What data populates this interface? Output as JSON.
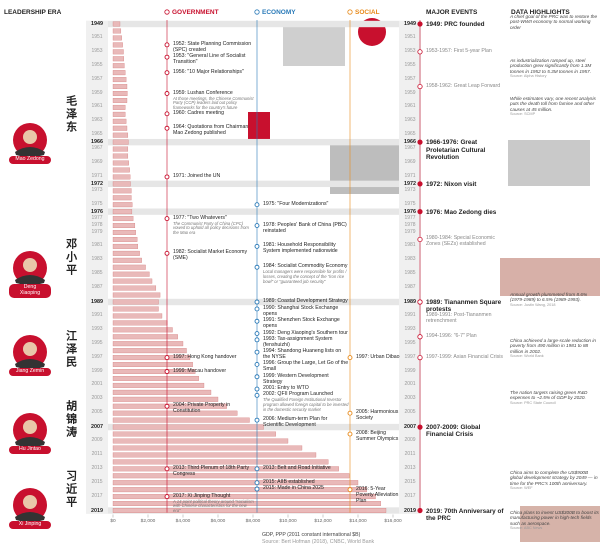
{
  "header": {
    "leadership_era": "LEADERSHIP ERA",
    "government": "GOVERNMENT",
    "economy": "ECONOMY",
    "social": "SOCIAL",
    "major_events": "MAJOR EVENTS",
    "data_highlights": "DATA HIGHLIGHTS"
  },
  "leaders": [
    {
      "chinese": "毛泽东",
      "name": "Mao Zedong"
    },
    {
      "chinese": "邓小平",
      "name": "Deng Xiaoping"
    },
    {
      "chinese": "江泽民",
      "name": "Jiang Zemin"
    },
    {
      "chinese": "胡锦涛",
      "name": "Hu Jintao"
    },
    {
      "chinese": "习近平",
      "name": "Xi Jinping"
    }
  ],
  "government": [
    {
      "text": "1952: State Planning Commission (SPC) created"
    },
    {
      "text": "1953: \"General Line of Socialist Transition\""
    },
    {
      "text": "1956: \"10 Major Relationships\""
    },
    {
      "text": "1959: Lushan Conference",
      "note": "At those meetings, the Chinese Communist Party (CCP) leaders laid out policy frameworks for the country's future"
    },
    {
      "text": "1960: Cadres meeting"
    },
    {
      "text": "1964: Quotations from Chairman Mao Zedong published"
    },
    {
      "text": "1971: Joined the UN"
    },
    {
      "text": "1977: \"Two Whatevers\"",
      "note": "The Communist Party of China (CPC) vowed to uphold all policy decisions from the Mao era"
    },
    {
      "text": "1982: Socialist Market Economy (SME)"
    },
    {
      "text": "1997: Hong Kong handover"
    },
    {
      "text": "1999: Macau handover"
    },
    {
      "text": "2004: Private Property in Constitution"
    },
    {
      "text": "2013: Third Plenum of 18th Party Congress"
    },
    {
      "text": "2017: Xi Jinping Thought",
      "note": "A 14 point political theory around \"socialism with Chinese characteristics for the new era\""
    }
  ],
  "economy": [
    {
      "text": "1975: \"Four Modernizations\""
    },
    {
      "text": "1978: Peoples' Bank of China (PBC) reinstated"
    },
    {
      "text": "1981: Household Responsibility System implemented nationwide"
    },
    {
      "text": "1984: Socialist Commodity Economy",
      "note": "Local managers were responsible for profits / losses, creating the concept of the \"iron rice bowl\" or \"guaranteed job security\""
    },
    {
      "text": "1989: Coastal Development Strategy"
    },
    {
      "text": "1990: Shanghai Stock Exchange opens"
    },
    {
      "text": "1991: Shenzhen Stock Exchange opens"
    },
    {
      "text": "1992: Deng Xiaoping's Southern tour"
    },
    {
      "text": "1993: Tax-assignment System (fenshuizhi)"
    },
    {
      "text": "1994: Shandong Huaneng lists on the NYSE"
    },
    {
      "text": "1996: Group the Large, Let Go of the Small"
    },
    {
      "text": "1999: Western Development Strategy"
    },
    {
      "text": "2001: Entry to WTO"
    },
    {
      "text": "2002: QFII Program Launched",
      "note": "The Qualified Foreign Institutional Investor program allowed foreign capital to be invested in the domestic security market"
    },
    {
      "text": "2006: Medium-term Plan for Scientific Development"
    },
    {
      "text": "2013: Belt and Road Initiative"
    },
    {
      "text": "2015: AIIB established"
    },
    {
      "text": "2015: Made in China 2025"
    }
  ],
  "social": [
    {
      "text": "1997: Urban Dibao"
    },
    {
      "text": "2005: Harmonious Society"
    },
    {
      "text": "2008: Beijing Summer Olympics"
    },
    {
      "text": "2016: 5-Year Poverty Alleviation Plan"
    }
  ],
  "major_events": [
    {
      "text": "1949: PRC founded",
      "highlight": true
    },
    {
      "text": "1953-1957: First 5-year Plan",
      "highlight": false
    },
    {
      "text": "1958-1962: Great Leap Forward",
      "highlight": false
    },
    {
      "text": "1966-1976: Great Proletarian Cultural Revolution",
      "highlight": true
    },
    {
      "text": "1972: Nixon visit",
      "highlight": true
    },
    {
      "text": "1976: Mao Zedong dies",
      "highlight": true
    },
    {
      "text": "1980-1984: Special Economic Zones (SEZs) established",
      "highlight": false
    },
    {
      "text": "1989: Tiananmen Square protests",
      "highlight": true
    },
    {
      "text": "1989-1991: Post-Tiananmen retrenchment",
      "highlight": false
    },
    {
      "text": "1994-1996: \"6-7\" Plan",
      "highlight": false
    },
    {
      "text": "1997-1999: Asian Financial Crisis",
      "highlight": false
    },
    {
      "text": "2007-2009: Global Financial Crisis",
      "highlight": true
    },
    {
      "text": "2019: 70th Anniversary of the PRC",
      "highlight": true
    }
  ],
  "data_highlights": [
    {
      "text": "A chief goal of the PRC was to restore the post-WWII economy to normal working order"
    },
    {
      "text": "As industrialization ramped up, steel production grew significantly from 1.3M tonnes in 1952 to 5.3M tonnes in 1957.",
      "source": "Source: Alpha History"
    },
    {
      "text": "While estimates vary, one recent analysis puts the death toll from famine and other causes at 45 million.",
      "source": "Source: SCMP"
    },
    {
      "text": "Annual growth plummeted from 8.6% (1979-1989) to 6.5% (1989-1993).",
      "source": "Source: Justin Wang, 2018"
    },
    {
      "text": "China achieved a large-scale reduction in poverty from 490 million in 1981 to 88 million in 2002.",
      "source": "Source: World Bank"
    },
    {
      "text": "The nation targets raising green R&D expenses to ~2.5% of GDP by 2020.",
      "source": "Source: PRC State Council"
    },
    {
      "text": "China aims to complete the US$900B global development strategy by 2049 — in time for the PRC's 100th anniversary.",
      "source": "Source: WEF"
    },
    {
      "text": "China plans to invest US$300B to boost its manufacturing power in high-tech fields such as aerospace.",
      "source": "Source: ABC News"
    }
  ],
  "chart_data": {
    "type": "bar",
    "categories": [
      "1949",
      null,
      "1951",
      null,
      "1953",
      null,
      "1955",
      null,
      "1957",
      null,
      "1959",
      null,
      "1961",
      null,
      "1963",
      null,
      "1965",
      "1966",
      "1967",
      null,
      "1969",
      null,
      "1971",
      "1972",
      "1973",
      null,
      "1975",
      "1976",
      "1977",
      "1978",
      "1979",
      null,
      "1981",
      null,
      "1983",
      null,
      "1985",
      null,
      "1987",
      null,
      "1989",
      null,
      "1991",
      null,
      "1993",
      null,
      "1995",
      null,
      "1997",
      null,
      "1999",
      null,
      "2001",
      null,
      "2003",
      null,
      "2005",
      null,
      "2007",
      null,
      "2009",
      null,
      "2011",
      null,
      "2013",
      null,
      "2015",
      null,
      "2017",
      null,
      "2019"
    ],
    "values": [
      400,
      450,
      500,
      550,
      600,
      620,
      650,
      700,
      750,
      800,
      820,
      800,
      700,
      700,
      750,
      800,
      850,
      880,
      850,
      850,
      900,
      950,
      980,
      1000,
      1050,
      1050,
      1100,
      1080,
      1150,
      1250,
      1300,
      1380,
      1420,
      1520,
      1640,
      1860,
      2080,
      2230,
      2450,
      2690,
      2600,
      2600,
      2800,
      3100,
      3400,
      3700,
      4000,
      4200,
      4400,
      4550,
      4700,
      4900,
      5200,
      5600,
      6000,
      6500,
      7100,
      7800,
      8600,
      9300,
      10000,
      10800,
      11600,
      12300,
      12900,
      13500,
      14000,
      14500,
      15000,
      15300,
      15600
    ],
    "color": "#e9b9b9",
    "xlim": [
      0,
      16000
    ],
    "xticks": [
      {
        "value": 0,
        "label": "$0"
      },
      {
        "value": 2000,
        "label": "$2,000"
      },
      {
        "value": 4000,
        "label": "$4,000"
      },
      {
        "value": 6000,
        "label": "$6,000"
      },
      {
        "value": 8000,
        "label": "$8,000"
      },
      {
        "value": 10000,
        "label": "$10,000"
      },
      {
        "value": 12000,
        "label": "$12,000"
      },
      {
        "value": 14000,
        "label": "$14,000"
      },
      {
        "value": 16000,
        "label": "$16,000"
      }
    ],
    "axis_label": "GDP, PPP (2011 constant international $B)",
    "source": "Source: Bert Hofman (2018), CNBC, World Bank"
  }
}
